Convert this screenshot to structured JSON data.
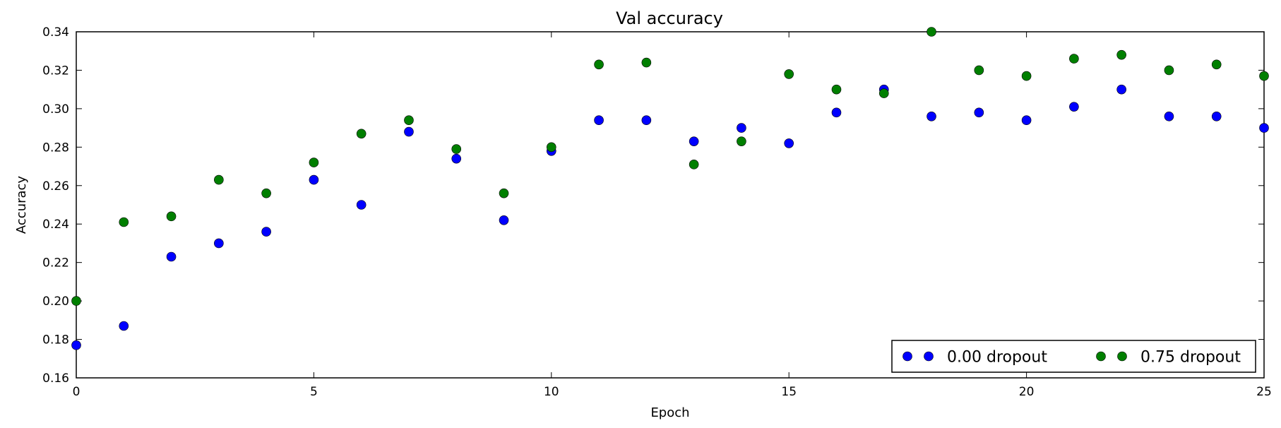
{
  "chart_data": {
    "type": "scatter",
    "title": "Val accuracy",
    "xlabel": "Epoch",
    "ylabel": "Accuracy",
    "xlim": [
      0,
      25
    ],
    "ylim": [
      0.16,
      0.34
    ],
    "xticks": [
      0,
      5,
      10,
      15,
      20,
      25
    ],
    "xtick_labels": [
      "0",
      "5",
      "10",
      "15",
      "20",
      "25"
    ],
    "yticks": [
      0.16,
      0.18,
      0.2,
      0.22,
      0.24,
      0.26,
      0.28,
      0.3,
      0.32,
      0.34
    ],
    "ytick_labels": [
      "0.16",
      "0.18",
      "0.20",
      "0.22",
      "0.24",
      "0.26",
      "0.28",
      "0.30",
      "0.32",
      "0.34"
    ],
    "grid": false,
    "legend_position": "lower right",
    "x": [
      0,
      1,
      2,
      3,
      4,
      5,
      6,
      7,
      8,
      9,
      10,
      11,
      12,
      13,
      14,
      15,
      16,
      17,
      18,
      19,
      20,
      21,
      22,
      23,
      24,
      25
    ],
    "series": [
      {
        "name": "0.00 dropout",
        "color": "#0000ff",
        "marker": "o",
        "values": [
          0.177,
          0.187,
          0.223,
          0.23,
          0.236,
          0.263,
          0.25,
          0.288,
          0.274,
          0.242,
          0.278,
          0.294,
          0.294,
          0.283,
          0.29,
          0.282,
          0.298,
          0.31,
          0.296,
          0.298,
          0.294,
          0.301,
          0.31,
          0.296,
          0.296,
          0.29
        ]
      },
      {
        "name": "0.75 dropout",
        "color": "#007f00",
        "marker": "o",
        "values": [
          0.2,
          0.241,
          0.244,
          0.263,
          0.256,
          0.272,
          0.287,
          0.294,
          0.279,
          0.256,
          0.28,
          0.323,
          0.324,
          0.271,
          0.283,
          0.318,
          0.31,
          0.308,
          0.34,
          0.32,
          0.317,
          0.326,
          0.328,
          0.32,
          0.323,
          0.317
        ]
      }
    ]
  }
}
